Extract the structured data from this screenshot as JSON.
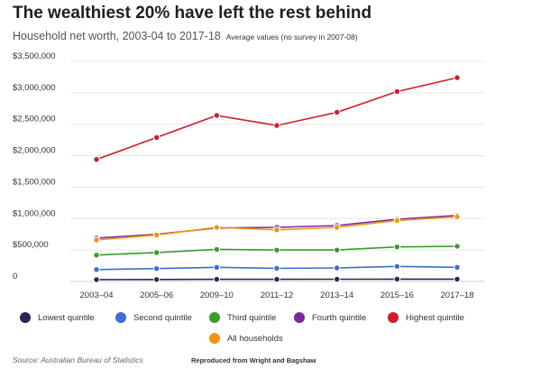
{
  "header": {
    "title": "The wealthiest 20% have left the rest behind",
    "subtitle": "Household net worth, 2003-04 to 2017-18",
    "note": "Average values (no survey in 2007-08)"
  },
  "footer": {
    "source": "Source: Australian Bureau of Statistics",
    "credit": "Reproduced from Wright and Bagshaw"
  },
  "chart_data": {
    "type": "line",
    "x": [
      "2003–04",
      "2005–06",
      "2009–10",
      "2011–12",
      "2013–14",
      "2015–16",
      "2017–18"
    ],
    "y_ticks": [
      "0",
      "$500,000",
      "$1,000,000",
      "$1,500,000",
      "$2,000,000",
      "$2,500,000",
      "$3,000,000",
      "$3,500,000"
    ],
    "ylim": [
      0,
      3500000
    ],
    "grid": true,
    "legend_position": "bottom",
    "series": [
      {
        "name": "Lowest quintile",
        "color": "#2b2750",
        "values": [
          30000,
          32000,
          35000,
          34000,
          36000,
          38000,
          37000
        ]
      },
      {
        "name": "Second quintile",
        "color": "#3a6fd1",
        "values": [
          190000,
          205000,
          225000,
          210000,
          215000,
          240000,
          225000
        ]
      },
      {
        "name": "Third quintile",
        "color": "#3a9a2f",
        "values": [
          420000,
          460000,
          510000,
          500000,
          500000,
          550000,
          560000
        ]
      },
      {
        "name": "Fourth quintile",
        "color": "#7b2a9a",
        "values": [
          690000,
          750000,
          850000,
          860000,
          890000,
          990000,
          1050000
        ]
      },
      {
        "name": "Highest quintile",
        "color": "#d01c2a",
        "values": [
          1940000,
          2290000,
          2640000,
          2480000,
          2690000,
          3020000,
          3240000
        ]
      },
      {
        "name": "All households",
        "color": "#f0960f",
        "values": [
          660000,
          740000,
          860000,
          820000,
          860000,
          970000,
          1030000
        ]
      }
    ]
  }
}
